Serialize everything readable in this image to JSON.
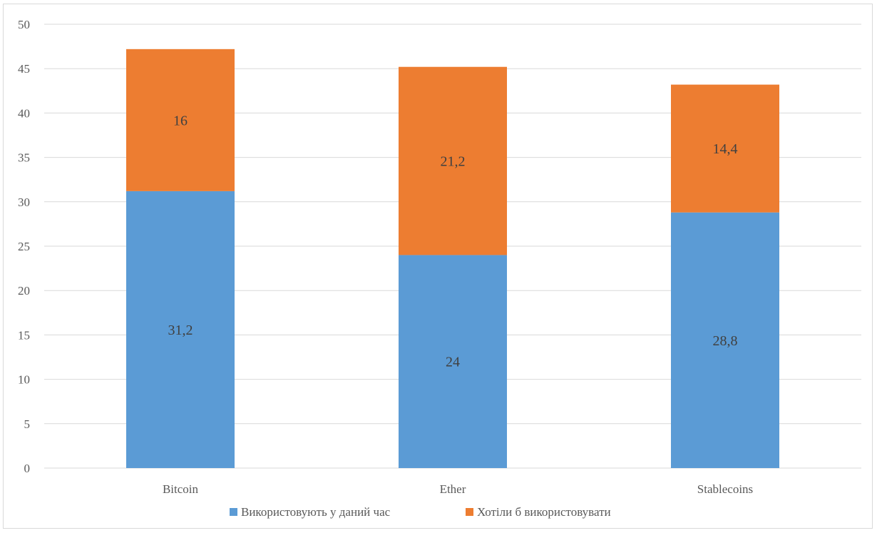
{
  "chart_data": {
    "type": "bar",
    "stacked": true,
    "categories": [
      "Bitcoin",
      "Ether",
      "Stablecoins"
    ],
    "series": [
      {
        "name": "Використовують у даний час",
        "values": [
          31.2,
          24,
          28.8
        ],
        "labels": [
          "31,2",
          "24",
          "28,8"
        ],
        "color": "#5b9bd5"
      },
      {
        "name": "Хотіли б використовувати",
        "values": [
          16,
          21.2,
          14.4
        ],
        "labels": [
          "16",
          "21,2",
          "14,4"
        ],
        "color": "#ed7d31"
      }
    ],
    "ylim": [
      0,
      50
    ],
    "yticks": [
      0,
      5,
      10,
      15,
      20,
      25,
      30,
      35,
      40,
      45,
      50
    ],
    "grid": true,
    "gridColor": "#d9d9d9",
    "legend": "bottom"
  }
}
